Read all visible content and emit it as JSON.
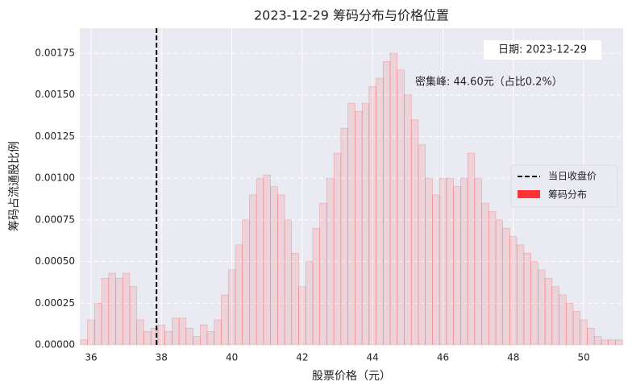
{
  "chart_data": {
    "type": "histogram",
    "title": "2023-12-29 筹码分布与价格位置",
    "xlabel": "股票价格（元）",
    "ylabel": "筹码占流通股比例",
    "bins": [
      35.7,
      35.9,
      36.1,
      36.3,
      36.5,
      36.7,
      36.9,
      37.1,
      37.3,
      37.5,
      37.7,
      37.9,
      38.1,
      38.3,
      38.5,
      38.7,
      38.9,
      39.1,
      39.3,
      39.5,
      39.7,
      39.9,
      40.1,
      40.3,
      40.5,
      40.7,
      40.9,
      41.1,
      41.3,
      41.5,
      41.7,
      41.9,
      42.1,
      42.3,
      42.5,
      42.7,
      42.9,
      43.1,
      43.3,
      43.5,
      43.7,
      43.9,
      44.1,
      44.3,
      44.5,
      44.7,
      44.9,
      45.1,
      45.3,
      45.5,
      45.7,
      45.9,
      46.1,
      46.3,
      46.5,
      46.7,
      46.9,
      47.1,
      47.3,
      47.5,
      47.7,
      47.9,
      48.1,
      48.3,
      48.5,
      48.7,
      48.9,
      49.1,
      49.3,
      49.5,
      49.7,
      49.9,
      50.1,
      50.3,
      50.5,
      50.7,
      50.9,
      51.1
    ],
    "series": [
      {
        "name": "筹码分布",
        "color": "#ff3333",
        "values": [
          3e-05,
          0.00015,
          0.00025,
          0.0004,
          0.00043,
          0.0004,
          0.00043,
          0.00035,
          0.00015,
          8e-05,
          0.0001,
          0.00012,
          8e-05,
          0.00016,
          0.00016,
          0.0001,
          5e-05,
          0.00012,
          8e-05,
          0.00015,
          0.0003,
          0.00045,
          0.0006,
          0.00075,
          0.0009,
          0.001,
          0.00102,
          0.00095,
          0.0009,
          0.00075,
          0.00055,
          0.00035,
          0.0005,
          0.0007,
          0.00085,
          0.001,
          0.00115,
          0.0013,
          0.00145,
          0.0014,
          0.00145,
          0.00155,
          0.0016,
          0.0017,
          0.00175,
          0.00165,
          0.0015,
          0.00135,
          0.0012,
          0.001,
          0.0009,
          0.001,
          0.001,
          0.00095,
          0.001,
          0.00115,
          0.001,
          0.00085,
          0.0008,
          0.00075,
          0.0007,
          0.00065,
          0.0006,
          0.00055,
          0.0005,
          0.00045,
          0.0004,
          0.00035,
          0.0003,
          0.00025,
          0.0002,
          0.00015,
          0.0001,
          5e-05,
          3e-05,
          3e-05,
          3e-05
        ]
      }
    ],
    "reference_line": {
      "name": "当日收盘价",
      "value": 37.86,
      "color": "#000000"
    },
    "annotations": [
      "日期: 2023-12-29",
      "密集峰: 44.60元（占比0.2%）"
    ],
    "xlim": [
      35.68,
      51.12
    ],
    "ylim": [
      0,
      0.0019
    ],
    "xticks": [
      36,
      38,
      40,
      42,
      44,
      46,
      48,
      50
    ],
    "yticks": [
      {
        "value": 0,
        "label": "0.00000"
      },
      {
        "value": 0.00025,
        "label": "0.00025"
      },
      {
        "value": 0.0005,
        "label": "0.00050"
      },
      {
        "value": 0.00075,
        "label": "0.00075"
      },
      {
        "value": 0.001,
        "label": "0.00100"
      },
      {
        "value": 0.00125,
        "label": "0.00125"
      },
      {
        "value": 0.0015,
        "label": "0.00150"
      },
      {
        "value": 0.00175,
        "label": "0.00175"
      }
    ],
    "grid": true,
    "legend": "center right"
  }
}
